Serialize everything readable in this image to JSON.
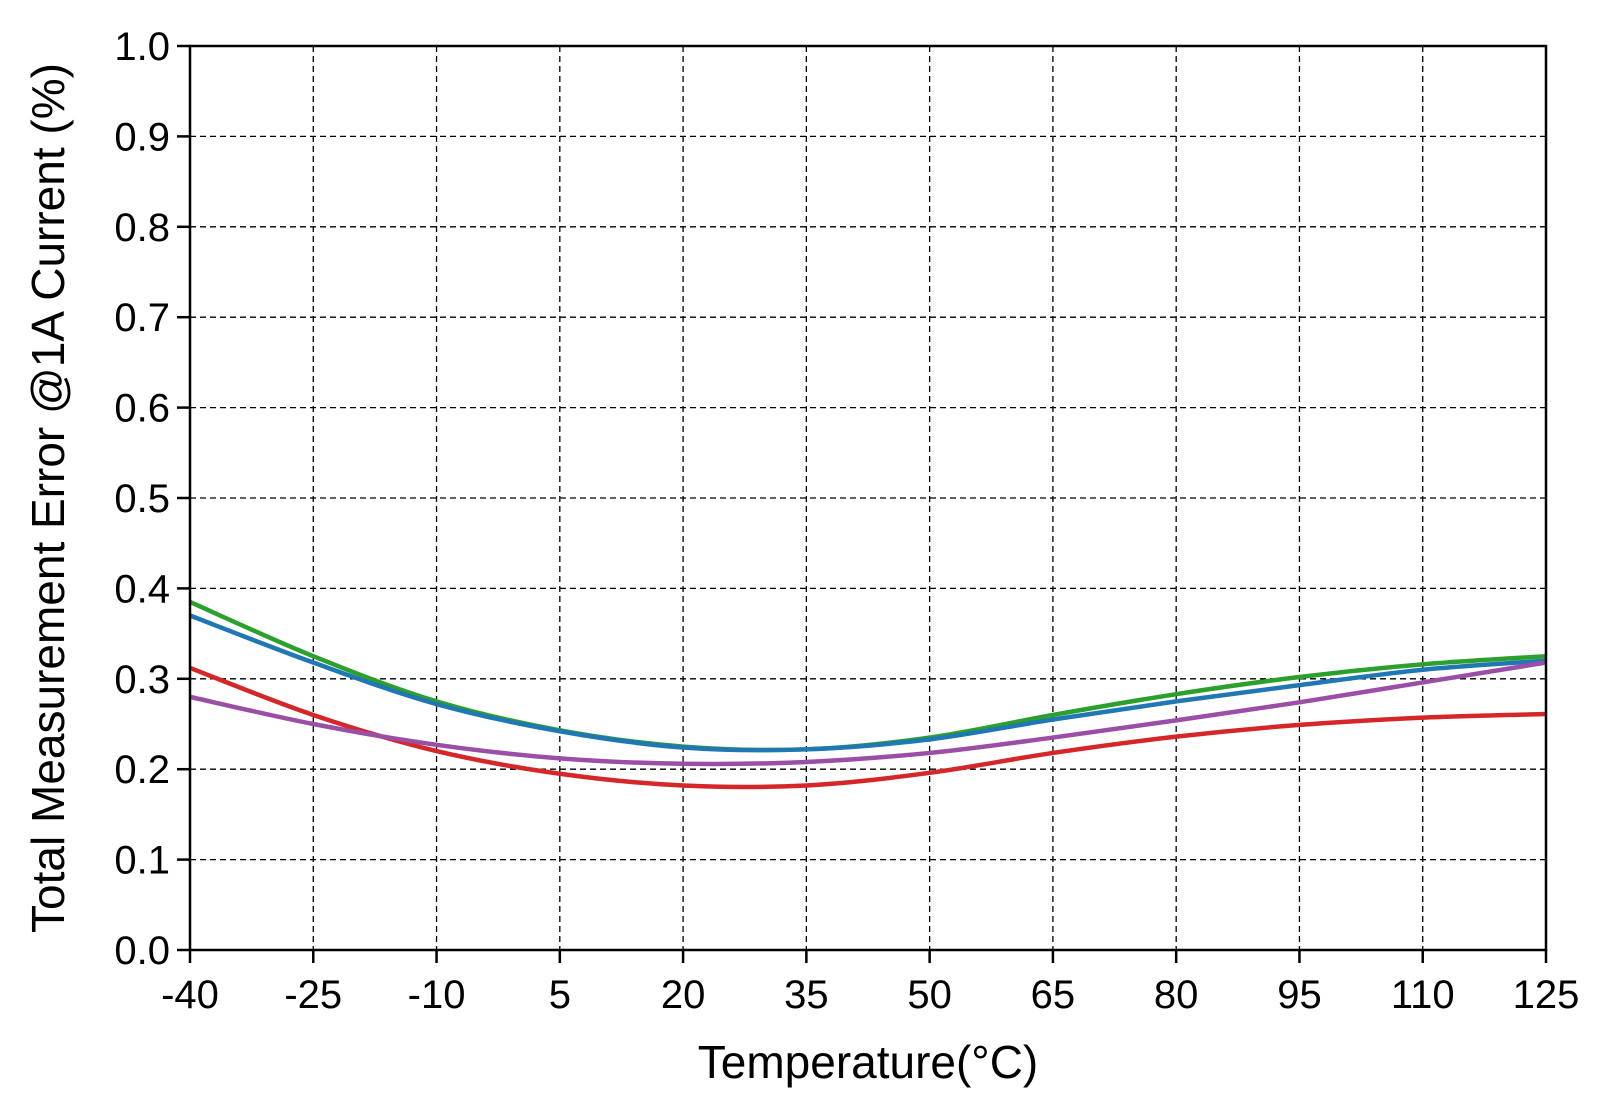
{
  "chart_data": {
    "type": "line",
    "title": "",
    "xlabel": "Temperature(°C)",
    "ylabel": "Total Measurement Error @1A Current (%)",
    "xlim": [
      -40,
      125
    ],
    "ylim": [
      0.0,
      1.0
    ],
    "xticks": [
      "-40",
      "-25",
      "-10",
      "5",
      "20",
      "35",
      "50",
      "65",
      "80",
      "95",
      "110",
      "125"
    ],
    "yticks": [
      "0.0",
      "0.1",
      "0.2",
      "0.3",
      "0.4",
      "0.5",
      "0.6",
      "0.7",
      "0.8",
      "0.9",
      "1.0"
    ],
    "grid": true,
    "grid_style": "dashed",
    "x": [
      -40,
      -25,
      -10,
      5,
      20,
      35,
      50,
      65,
      80,
      95,
      110,
      125
    ],
    "series": [
      {
        "color": "#2ca02c",
        "values": [
          0.385,
          0.325,
          0.275,
          0.243,
          0.225,
          0.222,
          0.235,
          0.26,
          0.283,
          0.302,
          0.316,
          0.325
        ]
      },
      {
        "color": "#1f77b4",
        "values": [
          0.37,
          0.318,
          0.272,
          0.242,
          0.224,
          0.222,
          0.233,
          0.255,
          0.275,
          0.293,
          0.31,
          0.32
        ]
      },
      {
        "color": "#d62728",
        "values": [
          0.312,
          0.26,
          0.22,
          0.195,
          0.182,
          0.182,
          0.196,
          0.218,
          0.236,
          0.249,
          0.257,
          0.261
        ]
      },
      {
        "color": "#9b4ea6",
        "values": [
          0.28,
          0.25,
          0.227,
          0.212,
          0.206,
          0.208,
          0.218,
          0.235,
          0.254,
          0.274,
          0.296,
          0.318
        ]
      }
    ]
  }
}
